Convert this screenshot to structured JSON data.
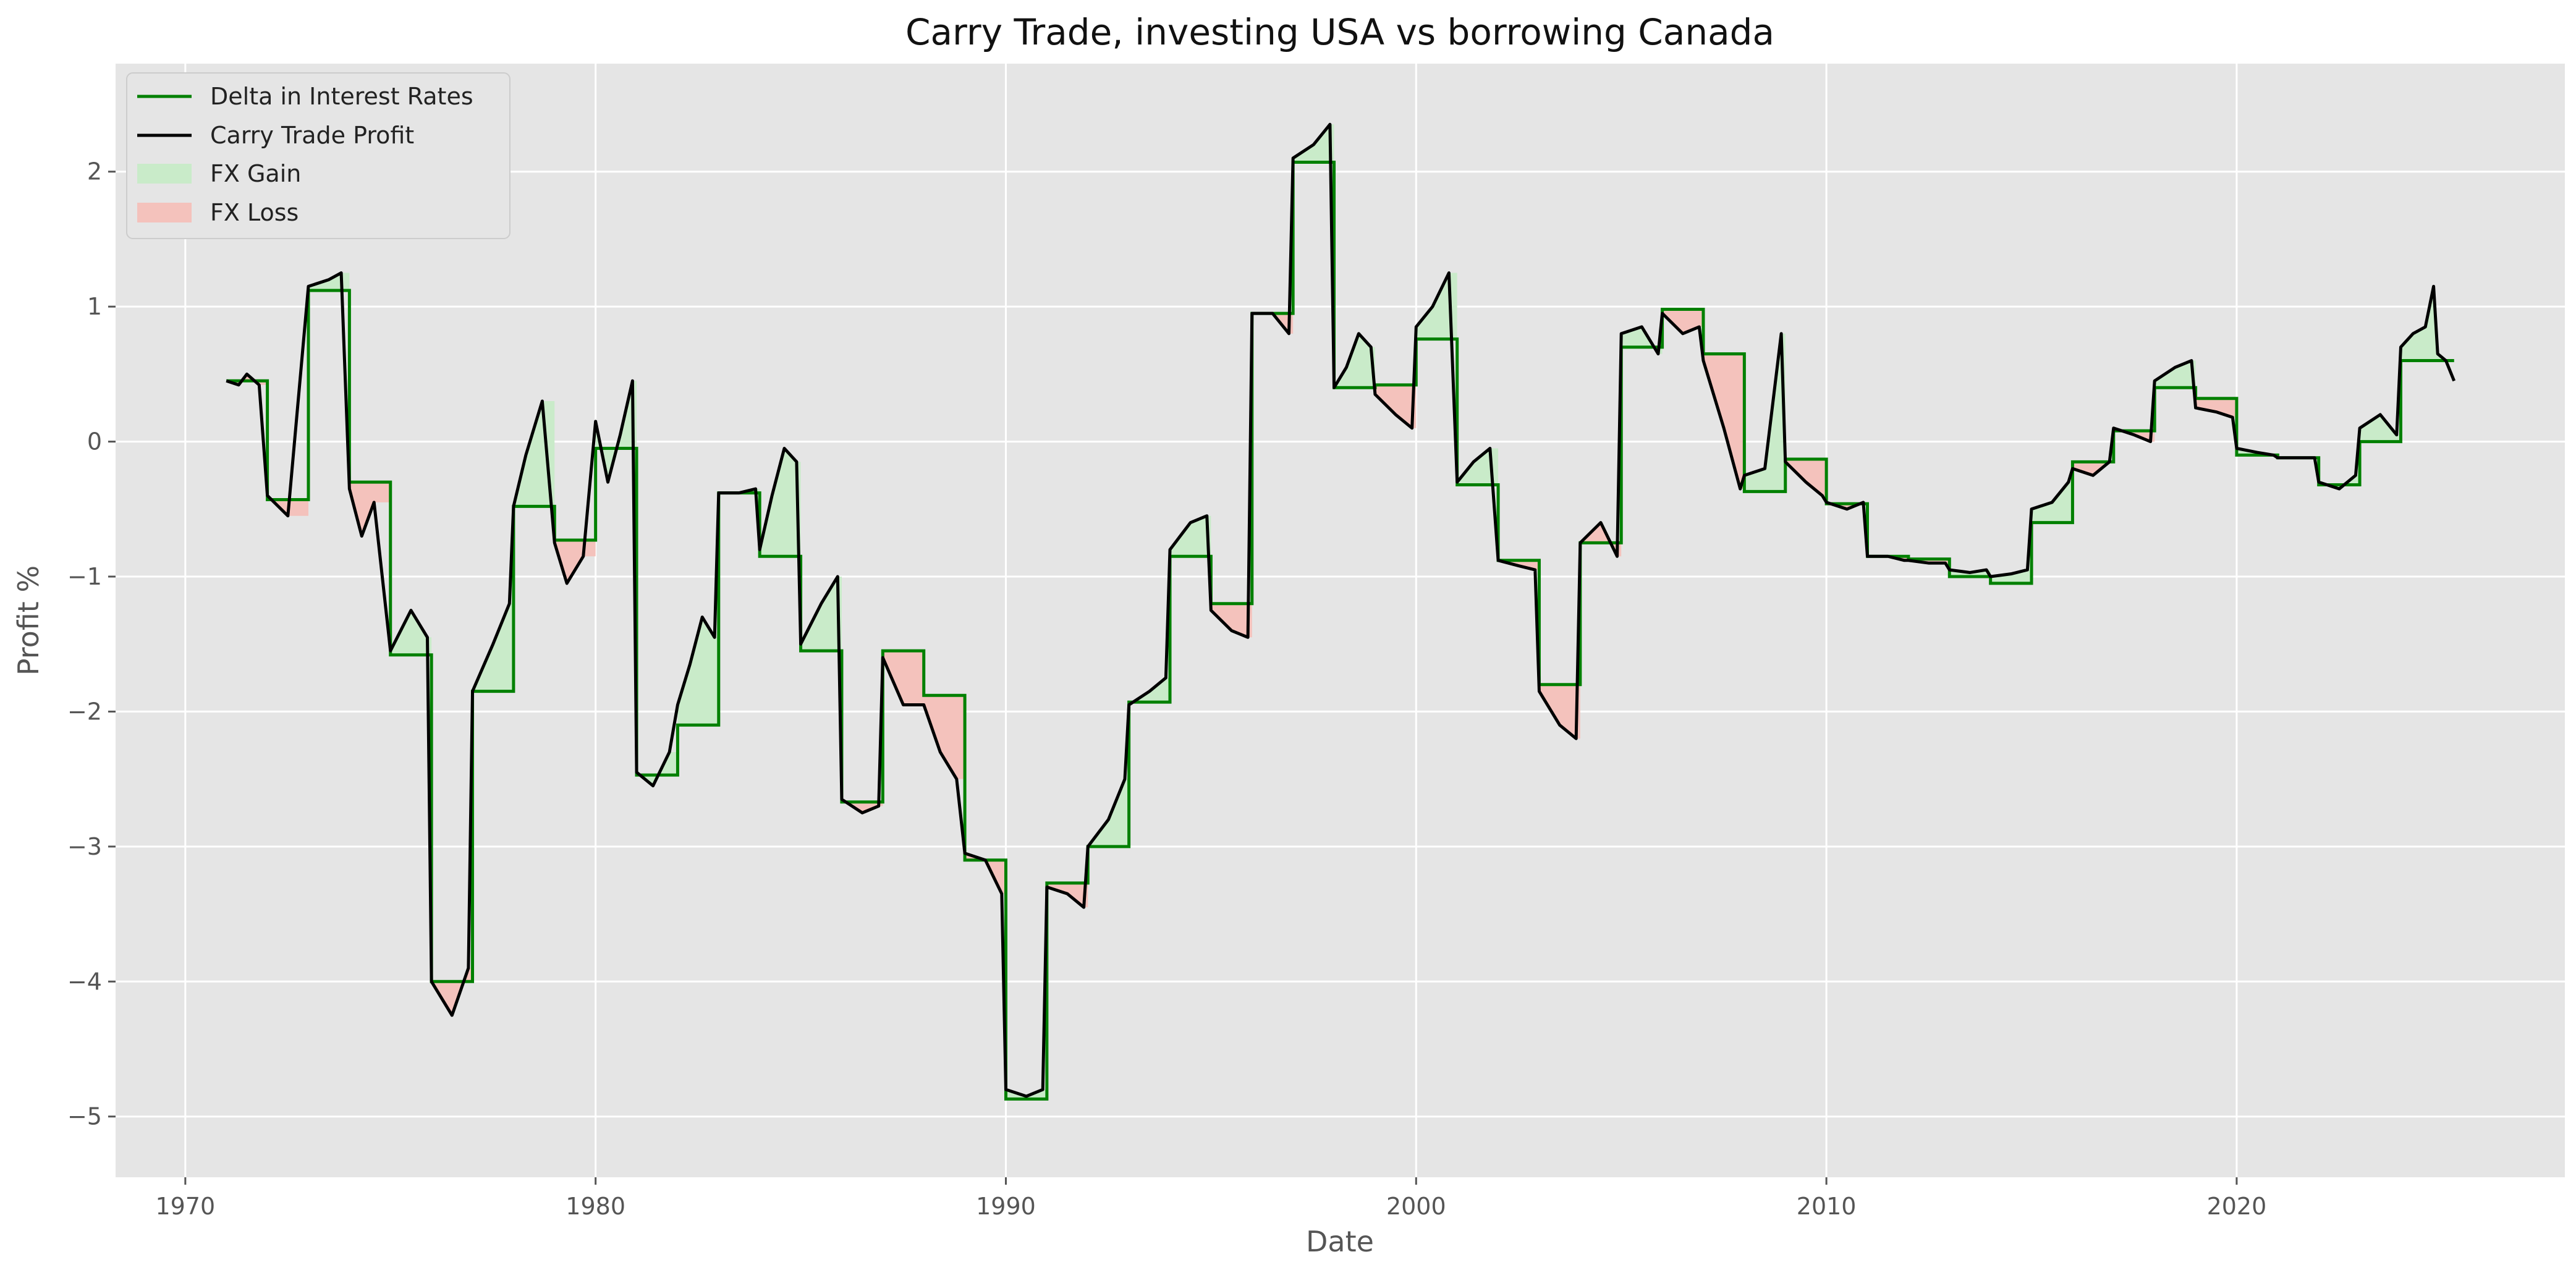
{
  "chart_data": {
    "type": "line",
    "title": "Carry Trade, investing USA vs borrowing Canada",
    "xlabel": "Date",
    "ylabel": "Profit %",
    "xlim": [
      1968.3,
      2028.0
    ],
    "ylim": [
      -5.45,
      2.8
    ],
    "x_ticks": [
      1970,
      1980,
      1990,
      2000,
      2010,
      2020
    ],
    "x_tick_labels": [
      "1970",
      "1980",
      "1990",
      "2000",
      "2010",
      "2020"
    ],
    "y_ticks": [
      -5,
      -4,
      -3,
      -2,
      -1,
      0,
      1,
      2
    ],
    "y_tick_labels": [
      "−5",
      "−4",
      "−3",
      "−2",
      "−1",
      "0",
      "1",
      "2"
    ],
    "grid": true,
    "legend_position": "top-left",
    "legend": {
      "delta_label": "Delta in Interest Rates",
      "profit_label": "Carry Trade Profit",
      "gain_label": "FX Gain",
      "loss_label": "FX Loss"
    },
    "colors": {
      "delta": "#008000",
      "profit": "#000000",
      "gain_fill": "#c9ebc9",
      "loss_fill": "#f4c2bc",
      "plot_bg": "#e5e5e5",
      "grid": "#ffffff"
    },
    "series": [
      {
        "name": "Delta in Interest Rates",
        "kind": "step",
        "segments": [
          [
            1971.0,
            1972.0,
            0.45
          ],
          [
            1972.0,
            1973.0,
            -0.43
          ],
          [
            1973.0,
            1974.0,
            1.12
          ],
          [
            1974.0,
            1975.0,
            -0.3
          ],
          [
            1975.0,
            1976.0,
            -1.58
          ],
          [
            1976.0,
            1977.0,
            -4.0
          ],
          [
            1977.0,
            1978.0,
            -1.85
          ],
          [
            1978.0,
            1979.0,
            -0.48
          ],
          [
            1979.0,
            1980.0,
            -0.73
          ],
          [
            1980.0,
            1981.0,
            -0.05
          ],
          [
            1981.0,
            1982.0,
            -2.47
          ],
          [
            1982.0,
            1983.0,
            -2.1
          ],
          [
            1983.0,
            1984.0,
            -0.38
          ],
          [
            1984.0,
            1985.0,
            -0.85
          ],
          [
            1985.0,
            1986.0,
            -1.55
          ],
          [
            1986.0,
            1987.0,
            -2.67
          ],
          [
            1987.0,
            1988.0,
            -1.55
          ],
          [
            1988.0,
            1989.0,
            -1.88
          ],
          [
            1989.0,
            1990.0,
            -3.1
          ],
          [
            1990.0,
            1991.0,
            -4.87
          ],
          [
            1991.0,
            1992.0,
            -3.27
          ],
          [
            1992.0,
            1993.0,
            -3.0
          ],
          [
            1993.0,
            1994.0,
            -1.93
          ],
          [
            1994.0,
            1995.0,
            -0.85
          ],
          [
            1995.0,
            1996.0,
            -1.2
          ],
          [
            1996.0,
            1997.0,
            0.95
          ],
          [
            1997.0,
            1998.0,
            2.07
          ],
          [
            1998.0,
            1999.0,
            0.4
          ],
          [
            1999.0,
            2000.0,
            0.42
          ],
          [
            2000.0,
            2001.0,
            0.76
          ],
          [
            2001.0,
            2002.0,
            -0.32
          ],
          [
            2002.0,
            2003.0,
            -0.88
          ],
          [
            2003.0,
            2004.0,
            -1.8
          ],
          [
            2004.0,
            2005.0,
            -0.75
          ],
          [
            2005.0,
            2006.0,
            0.7
          ],
          [
            2006.0,
            2007.0,
            0.98
          ],
          [
            2007.0,
            2008.0,
            0.65
          ],
          [
            2008.0,
            2009.0,
            -0.37
          ],
          [
            2009.0,
            2010.0,
            -0.13
          ],
          [
            2010.0,
            2011.0,
            -0.46
          ],
          [
            2011.0,
            2012.0,
            -0.85
          ],
          [
            2012.0,
            2013.0,
            -0.87
          ],
          [
            2013.0,
            2014.0,
            -1.0
          ],
          [
            2014.0,
            2015.0,
            -1.05
          ],
          [
            2015.0,
            2016.0,
            -0.6
          ],
          [
            2016.0,
            2017.0,
            -0.15
          ],
          [
            2017.0,
            2018.0,
            0.08
          ],
          [
            2018.0,
            2019.0,
            0.4
          ],
          [
            2019.0,
            2020.0,
            0.32
          ],
          [
            2020.0,
            2021.0,
            -0.1
          ],
          [
            2021.0,
            2022.0,
            -0.12
          ],
          [
            2022.0,
            2023.0,
            -0.32
          ],
          [
            2023.0,
            2024.0,
            0.0
          ],
          [
            2024.0,
            2025.3,
            0.6
          ]
        ]
      },
      {
        "name": "Carry Trade Profit",
        "kind": "line",
        "points": [
          [
            1971.0,
            0.45
          ],
          [
            1971.3,
            0.42
          ],
          [
            1971.5,
            0.5
          ],
          [
            1971.8,
            0.42
          ],
          [
            1972.0,
            -0.4
          ],
          [
            1972.5,
            -0.55
          ],
          [
            1973.0,
            1.15
          ],
          [
            1973.5,
            1.2
          ],
          [
            1973.8,
            1.25
          ],
          [
            1974.0,
            -0.35
          ],
          [
            1974.3,
            -0.7
          ],
          [
            1974.6,
            -0.45
          ],
          [
            1975.0,
            -1.55
          ],
          [
            1975.5,
            -1.25
          ],
          [
            1975.9,
            -1.45
          ],
          [
            1976.0,
            -4.0
          ],
          [
            1976.5,
            -4.25
          ],
          [
            1976.9,
            -3.9
          ],
          [
            1977.0,
            -1.85
          ],
          [
            1977.5,
            -1.5
          ],
          [
            1977.9,
            -1.2
          ],
          [
            1978.0,
            -0.48
          ],
          [
            1978.3,
            -0.1
          ],
          [
            1978.7,
            0.3
          ],
          [
            1979.0,
            -0.75
          ],
          [
            1979.3,
            -1.05
          ],
          [
            1979.7,
            -0.85
          ],
          [
            1980.0,
            0.15
          ],
          [
            1980.3,
            -0.3
          ],
          [
            1980.6,
            0.05
          ],
          [
            1980.9,
            0.45
          ],
          [
            1981.0,
            -2.45
          ],
          [
            1981.4,
            -2.55
          ],
          [
            1981.8,
            -2.3
          ],
          [
            1982.0,
            -1.95
          ],
          [
            1982.3,
            -1.65
          ],
          [
            1982.6,
            -1.3
          ],
          [
            1982.9,
            -1.45
          ],
          [
            1983.0,
            -0.38
          ],
          [
            1983.5,
            -0.38
          ],
          [
            1983.9,
            -0.35
          ],
          [
            1984.0,
            -0.8
          ],
          [
            1984.3,
            -0.4
          ],
          [
            1984.6,
            -0.05
          ],
          [
            1984.9,
            -0.15
          ],
          [
            1985.0,
            -1.5
          ],
          [
            1985.5,
            -1.2
          ],
          [
            1985.9,
            -1.0
          ],
          [
            1986.0,
            -2.65
          ],
          [
            1986.5,
            -2.75
          ],
          [
            1986.9,
            -2.7
          ],
          [
            1987.0,
            -1.6
          ],
          [
            1987.5,
            -1.95
          ],
          [
            1987.9,
            -1.95
          ],
          [
            1988.0,
            -1.95
          ],
          [
            1988.4,
            -2.3
          ],
          [
            1988.8,
            -2.5
          ],
          [
            1989.0,
            -3.05
          ],
          [
            1989.5,
            -3.1
          ],
          [
            1989.9,
            -3.35
          ],
          [
            1990.0,
            -4.8
          ],
          [
            1990.5,
            -4.85
          ],
          [
            1990.9,
            -4.8
          ],
          [
            1991.0,
            -3.3
          ],
          [
            1991.5,
            -3.35
          ],
          [
            1991.9,
            -3.45
          ],
          [
            1992.0,
            -3.0
          ],
          [
            1992.5,
            -2.8
          ],
          [
            1992.9,
            -2.5
          ],
          [
            1993.0,
            -1.95
          ],
          [
            1993.5,
            -1.85
          ],
          [
            1993.9,
            -1.75
          ],
          [
            1994.0,
            -0.8
          ],
          [
            1994.5,
            -0.6
          ],
          [
            1994.9,
            -0.55
          ],
          [
            1995.0,
            -1.25
          ],
          [
            1995.5,
            -1.4
          ],
          [
            1995.9,
            -1.45
          ],
          [
            1996.0,
            0.95
          ],
          [
            1996.5,
            0.95
          ],
          [
            1996.9,
            0.8
          ],
          [
            1997.0,
            2.1
          ],
          [
            1997.5,
            2.2
          ],
          [
            1997.9,
            2.35
          ],
          [
            1998.0,
            0.4
          ],
          [
            1998.3,
            0.55
          ],
          [
            1998.6,
            0.8
          ],
          [
            1998.9,
            0.7
          ],
          [
            1999.0,
            0.35
          ],
          [
            1999.5,
            0.2
          ],
          [
            1999.9,
            0.1
          ],
          [
            2000.0,
            0.85
          ],
          [
            2000.4,
            1.0
          ],
          [
            2000.8,
            1.25
          ],
          [
            2001.0,
            -0.3
          ],
          [
            2001.4,
            -0.15
          ],
          [
            2001.8,
            -0.05
          ],
          [
            2002.0,
            -0.88
          ],
          [
            2002.5,
            -0.92
          ],
          [
            2002.9,
            -0.95
          ],
          [
            2003.0,
            -1.85
          ],
          [
            2003.5,
            -2.1
          ],
          [
            2003.9,
            -2.2
          ],
          [
            2004.0,
            -0.75
          ],
          [
            2004.5,
            -0.6
          ],
          [
            2004.9,
            -0.85
          ],
          [
            2005.0,
            0.8
          ],
          [
            2005.5,
            0.85
          ],
          [
            2005.9,
            0.65
          ],
          [
            2006.0,
            0.95
          ],
          [
            2006.5,
            0.8
          ],
          [
            2006.9,
            0.85
          ],
          [
            2007.0,
            0.6
          ],
          [
            2007.5,
            0.1
          ],
          [
            2007.9,
            -0.35
          ],
          [
            2008.0,
            -0.25
          ],
          [
            2008.5,
            -0.2
          ],
          [
            2008.9,
            0.8
          ],
          [
            2009.0,
            -0.15
          ],
          [
            2009.5,
            -0.3
          ],
          [
            2009.9,
            -0.4
          ],
          [
            2010.0,
            -0.45
          ],
          [
            2010.5,
            -0.5
          ],
          [
            2010.9,
            -0.45
          ],
          [
            2011.0,
            -0.85
          ],
          [
            2011.5,
            -0.85
          ],
          [
            2011.9,
            -0.88
          ],
          [
            2012.0,
            -0.88
          ],
          [
            2012.5,
            -0.9
          ],
          [
            2012.9,
            -0.9
          ],
          [
            2013.0,
            -0.95
          ],
          [
            2013.5,
            -0.97
          ],
          [
            2013.9,
            -0.95
          ],
          [
            2014.0,
            -1.0
          ],
          [
            2014.5,
            -0.98
          ],
          [
            2014.9,
            -0.95
          ],
          [
            2015.0,
            -0.5
          ],
          [
            2015.5,
            -0.45
          ],
          [
            2015.9,
            -0.3
          ],
          [
            2016.0,
            -0.2
          ],
          [
            2016.5,
            -0.25
          ],
          [
            2016.9,
            -0.15
          ],
          [
            2017.0,
            0.1
          ],
          [
            2017.5,
            0.05
          ],
          [
            2017.9,
            0.0
          ],
          [
            2018.0,
            0.45
          ],
          [
            2018.5,
            0.55
          ],
          [
            2018.9,
            0.6
          ],
          [
            2019.0,
            0.25
          ],
          [
            2019.5,
            0.22
          ],
          [
            2019.9,
            0.18
          ],
          [
            2020.0,
            -0.05
          ],
          [
            2020.5,
            -0.08
          ],
          [
            2020.9,
            -0.1
          ],
          [
            2021.0,
            -0.12
          ],
          [
            2021.5,
            -0.12
          ],
          [
            2021.9,
            -0.12
          ],
          [
            2022.0,
            -0.3
          ],
          [
            2022.5,
            -0.35
          ],
          [
            2022.9,
            -0.25
          ],
          [
            2023.0,
            0.1
          ],
          [
            2023.5,
            0.2
          ],
          [
            2023.9,
            0.05
          ],
          [
            2024.0,
            0.7
          ],
          [
            2024.3,
            0.8
          ],
          [
            2024.6,
            0.85
          ],
          [
            2024.8,
            1.15
          ],
          [
            2024.9,
            0.65
          ],
          [
            2025.1,
            0.6
          ],
          [
            2025.3,
            0.45
          ]
        ]
      }
    ]
  }
}
